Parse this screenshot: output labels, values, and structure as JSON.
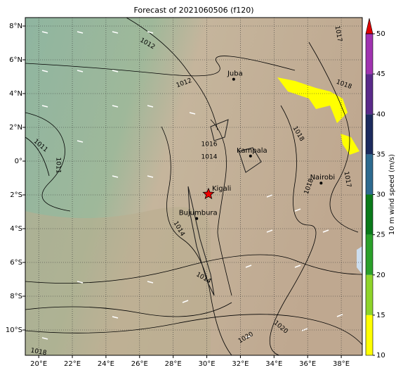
{
  "title": "Forecast of 2021060506 (f120)",
  "xlim": [
    19.2,
    39.25
  ],
  "ylim": [
    -11.5,
    8.5
  ],
  "xticks": [
    {
      "value": 20,
      "label": "20°E"
    },
    {
      "value": 22,
      "label": "22°E"
    },
    {
      "value": 24,
      "label": "24°E"
    },
    {
      "value": 26,
      "label": "26°E"
    },
    {
      "value": 28,
      "label": "28°E"
    },
    {
      "value": 30,
      "label": "30°E"
    },
    {
      "value": 32,
      "label": "32°E"
    },
    {
      "value": 34,
      "label": "34°E"
    },
    {
      "value": 36,
      "label": "36°E"
    },
    {
      "value": 38,
      "label": "38°E"
    }
  ],
  "yticks": [
    {
      "value": 8,
      "label": "8°N"
    },
    {
      "value": 6,
      "label": "6°N"
    },
    {
      "value": 4,
      "label": "4°N"
    },
    {
      "value": 2,
      "label": "2°N"
    },
    {
      "value": 0,
      "label": "0°"
    },
    {
      "value": -2,
      "label": "2°S"
    },
    {
      "value": -4,
      "label": "4°S"
    },
    {
      "value": -6,
      "label": "6°S"
    },
    {
      "value": -8,
      "label": "8°S"
    },
    {
      "value": -10,
      "label": "10°S"
    }
  ],
  "grid": true,
  "cities": [
    {
      "name": "Juba",
      "lon": 31.6,
      "lat": 4.85
    },
    {
      "name": "Kampala",
      "lon": 32.6,
      "lat": 0.3
    },
    {
      "name": "Nairobi",
      "lon": 36.8,
      "lat": -1.3
    },
    {
      "name": "Kigali",
      "lon": 30.1,
      "lat": -1.95
    },
    {
      "name": "Bujumbura",
      "lon": 29.4,
      "lat": -3.4
    }
  ],
  "star_city": "Kigali",
  "contour_labels": [
    "1012",
    "1012",
    "1011",
    "1011",
    "1014",
    "1014",
    "1016",
    "1018",
    "1017",
    "1018",
    "1017",
    "1018",
    "1020",
    "1020",
    "1018",
    "1014"
  ],
  "colorbar": {
    "label": "10 m wind speed (m/s)",
    "lim": [
      10,
      50
    ],
    "ticks": [
      10,
      15,
      20,
      25,
      30,
      35,
      40,
      45,
      50
    ],
    "colors": [
      "#ffff00",
      "#8fd42a",
      "#2aa02a",
      "#0a7a1a",
      "#2d6a8f",
      "#1c2b5e",
      "#5a2a8a",
      "#a033b0"
    ],
    "extend_color": "#e00000"
  }
}
